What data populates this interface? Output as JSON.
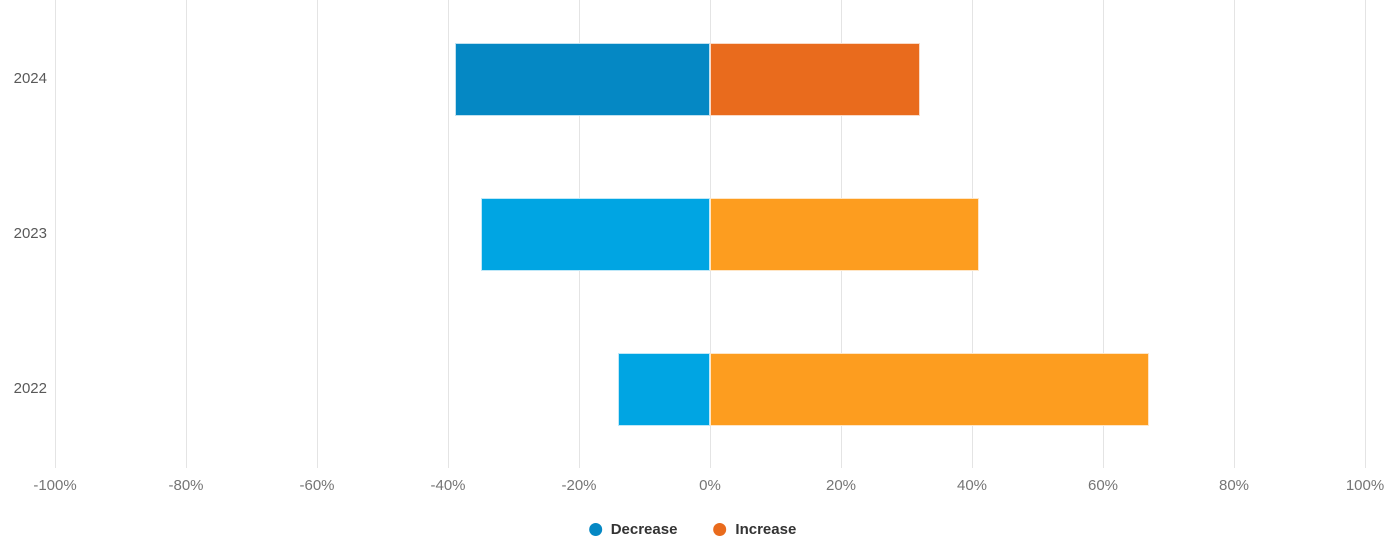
{
  "chart_data": {
    "type": "bar",
    "orientation": "horizontal",
    "variant": "diverging-stacked",
    "title": "",
    "xlabel": "",
    "ylabel": "",
    "xlim": [
      -100,
      100
    ],
    "x_tick_step": 20,
    "x_ticks": [
      "-100%",
      "-80%",
      "-60%",
      "-40%",
      "-20%",
      "0%",
      "20%",
      "40%",
      "60%",
      "80%",
      "100%"
    ],
    "grid": true,
    "categories": [
      "2024",
      "2023",
      "2022"
    ],
    "series": [
      {
        "name": "Decrease",
        "values": [
          -39,
          -35,
          -14
        ],
        "colors": [
          "#0588c4",
          "#00a5e3",
          "#00a5e3"
        ]
      },
      {
        "name": "Increase",
        "values": [
          32,
          41,
          67
        ],
        "colors": [
          "#e96b1d",
          "#fd9d1f",
          "#fd9d1f"
        ]
      }
    ],
    "legend_position": "bottom-center",
    "legend": [
      {
        "label": "Decrease",
        "color": "#0588c4"
      },
      {
        "label": "Increase",
        "color": "#e96b1d"
      }
    ]
  },
  "styles": {
    "background": "#ffffff",
    "grid_color": "#e4e4e4",
    "y_label_color": "#595959",
    "x_label_color": "#757575",
    "legend_text_color": "#333333",
    "bar_border_color": "rgba(255,255,255,0.75)"
  }
}
